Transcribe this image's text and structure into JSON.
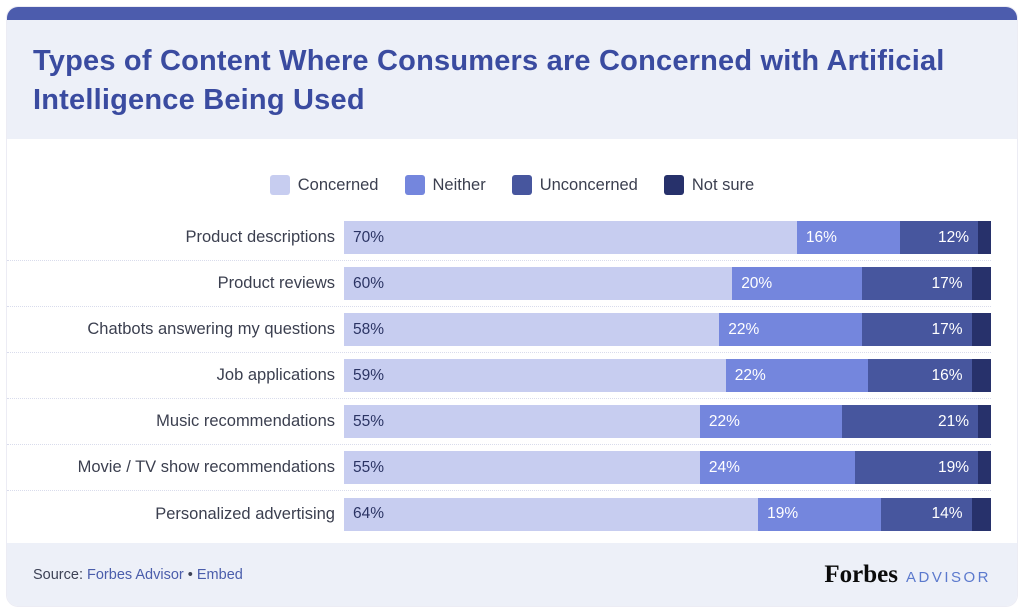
{
  "header": {
    "title": "Types of Content Where Consumers are Concerned with Artificial Intelligence Being Used"
  },
  "chart_data": {
    "type": "bar",
    "orientation": "horizontal-stacked",
    "title": "Types of Content Where Consumers are Concerned with Artificial Intelligence Being Used",
    "value_suffix": "%",
    "xlim": [
      0,
      100
    ],
    "legend_position": "top-center",
    "grid": false,
    "categories": [
      "Product descriptions",
      "Product reviews",
      "Chatbots answering my questions",
      "Job applications",
      "Music recommendations",
      "Movie / TV show recommendations",
      "Personalized advertising"
    ],
    "series": [
      {
        "name": "Concerned",
        "color": "#c7cdf0",
        "label_color": "#2b3464",
        "label_align": "left",
        "show_labels": true,
        "values": [
          70,
          60,
          58,
          59,
          55,
          55,
          64
        ]
      },
      {
        "name": "Neither",
        "color": "#7486dd",
        "label_color": "#ffffff",
        "label_align": "left",
        "show_labels": true,
        "values": [
          16,
          20,
          22,
          22,
          22,
          24,
          19
        ]
      },
      {
        "name": "Unconcerned",
        "color": "#47569e",
        "label_color": "#ffffff",
        "label_align": "right",
        "show_labels": true,
        "values": [
          12,
          17,
          17,
          16,
          21,
          19,
          14
        ]
      },
      {
        "name": "Not sure",
        "color": "#27316b",
        "label_color": "#ffffff",
        "label_align": "left",
        "show_labels": false,
        "values": [
          2,
          3,
          3,
          3,
          2,
          2,
          3
        ]
      }
    ]
  },
  "footer": {
    "source_prefix": "Source:",
    "source_link": "Forbes Advisor",
    "separator": "•",
    "embed_link": "Embed",
    "logo_primary": "Forbes",
    "logo_secondary": "ADVISOR"
  },
  "colors": {
    "accent_bar": "#4c5cad",
    "header_bg": "#edf0f8",
    "footer_bg": "#edf0f8",
    "title": "#3a4ba0",
    "link": "#4a5dab"
  }
}
